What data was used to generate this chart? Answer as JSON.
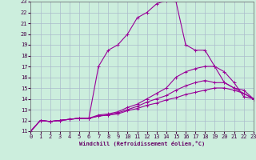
{
  "xlabel": "Windchill (Refroidissement éolien,°C)",
  "background_color": "#cceedd",
  "grid_color": "#aabbcc",
  "line_color": "#990099",
  "xlim": [
    0,
    23
  ],
  "ylim": [
    11,
    23
  ],
  "xticks": [
    0,
    1,
    2,
    3,
    4,
    5,
    6,
    7,
    8,
    9,
    10,
    11,
    12,
    13,
    14,
    15,
    16,
    17,
    18,
    19,
    20,
    21,
    22,
    23
  ],
  "yticks": [
    11,
    12,
    13,
    14,
    15,
    16,
    17,
    18,
    19,
    20,
    21,
    22,
    23
  ],
  "series": [
    {
      "x": [
        0,
        1,
        2,
        3,
        4,
        5,
        6,
        7,
        8,
        9,
        10,
        11,
        12,
        13,
        14,
        15,
        16,
        17,
        18,
        19,
        20,
        21,
        22,
        23
      ],
      "y": [
        11.0,
        12.0,
        11.9,
        12.0,
        12.1,
        12.2,
        12.2,
        17.0,
        18.5,
        19.0,
        20.0,
        21.5,
        22.0,
        22.8,
        23.1,
        23.0,
        19.0,
        18.5,
        18.5,
        17.0,
        16.5,
        15.5,
        14.2,
        14.0
      ]
    },
    {
      "x": [
        0,
        1,
        2,
        3,
        4,
        5,
        6,
        7,
        8,
        9,
        10,
        11,
        12,
        13,
        14,
        15,
        16,
        17,
        18,
        19,
        20,
        21,
        22,
        23
      ],
      "y": [
        11.0,
        12.0,
        11.9,
        12.0,
        12.1,
        12.2,
        12.2,
        12.5,
        12.6,
        12.8,
        13.2,
        13.5,
        14.0,
        14.5,
        15.0,
        16.0,
        16.5,
        16.8,
        17.0,
        17.0,
        15.5,
        15.0,
        14.5,
        14.0
      ]
    },
    {
      "x": [
        0,
        1,
        2,
        3,
        4,
        5,
        6,
        7,
        8,
        9,
        10,
        11,
        12,
        13,
        14,
        15,
        16,
        17,
        18,
        19,
        20,
        21,
        22,
        23
      ],
      "y": [
        11.0,
        12.0,
        11.9,
        12.0,
        12.1,
        12.2,
        12.2,
        12.4,
        12.5,
        12.7,
        13.0,
        13.3,
        13.7,
        14.0,
        14.3,
        14.8,
        15.2,
        15.5,
        15.7,
        15.5,
        15.5,
        15.0,
        14.8,
        14.0
      ]
    },
    {
      "x": [
        0,
        1,
        2,
        3,
        4,
        5,
        6,
        7,
        8,
        9,
        10,
        11,
        12,
        13,
        14,
        15,
        16,
        17,
        18,
        19,
        20,
        21,
        22,
        23
      ],
      "y": [
        11.0,
        12.0,
        11.9,
        12.0,
        12.1,
        12.2,
        12.2,
        12.4,
        12.5,
        12.6,
        12.9,
        13.1,
        13.4,
        13.6,
        13.9,
        14.1,
        14.4,
        14.6,
        14.8,
        15.0,
        15.0,
        14.8,
        14.5,
        14.0
      ]
    }
  ]
}
